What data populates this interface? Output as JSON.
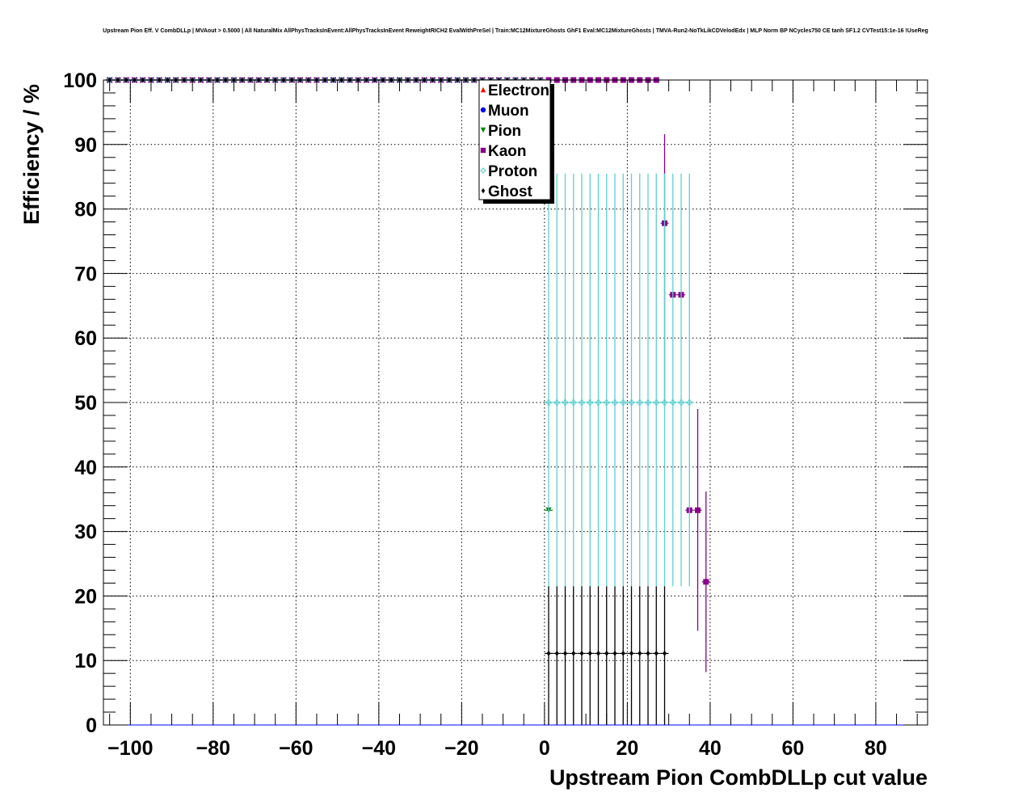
{
  "chart_data": {
    "type": "scatter",
    "title": "Upstream Pion Eff. V CombDLLp | MVAout > 0.5000 | All NaturalMix AllPhysTracksInEvent:AllPhysTracksInEvent ReweightRICH2 EvalWithPreSel | Train:MC12MixtureGhosts GhF1 Eval:MC12MixtureGhosts | TMVA-Run2-NoTkLikCDVelodEdx | MLP Norm BP NCycles750 CE tanh SF1.2 CVTest15:1e-16 !UseReg",
    "xlabel": "Upstream Pion CombDLLp cut value",
    "ylabel": "Efficiency / %",
    "xlim": [
      -106.5,
      92.5
    ],
    "ylim": [
      0,
      100
    ],
    "xticks": [
      -100,
      -80,
      -60,
      -40,
      -20,
      0,
      20,
      40,
      60,
      80
    ],
    "xtick_labels": [
      "−100",
      "−80",
      "−60",
      "−40",
      "−20",
      "0",
      "20",
      "40",
      "60",
      "80"
    ],
    "yticks": [
      0,
      10,
      20,
      30,
      40,
      50,
      60,
      70,
      80,
      90,
      100
    ],
    "ytick_labels": [
      "0",
      "10",
      "20",
      "30",
      "40",
      "50",
      "60",
      "70",
      "80",
      "90",
      "100"
    ],
    "grid": true,
    "legend_position": "top-center",
    "series": [
      {
        "name": "Electron",
        "color": "#ff0000",
        "marker": "triangle-up",
        "points": {
          "x_from": -105,
          "x_to": -1,
          "step": 2,
          "y": 100
        }
      },
      {
        "name": "Muon",
        "color": "#0000ff",
        "marker": "circle",
        "points": {
          "x_from": -105,
          "x_to": -1,
          "step": 2,
          "y": 100
        }
      },
      {
        "name": "Pion",
        "color": "#008800",
        "marker": "triangle-down",
        "points": {
          "x_from": -105,
          "x_to": -1,
          "step": 2,
          "y": 100
        },
        "extra": [
          {
            "x": 1,
            "y": 33.3,
            "lo": 33.3,
            "hi": 33.3
          }
        ]
      },
      {
        "name": "Kaon",
        "color": "#880088",
        "marker": "square",
        "points": {
          "x_from": -105,
          "x_to": 27,
          "step": 2,
          "y": 100
        },
        "extra": [
          {
            "x": 29,
            "y": 77.8,
            "lo": 50,
            "hi": 91.6
          },
          {
            "x": 31,
            "y": 66.7,
            "lo": 66.7,
            "hi": 66.7
          },
          {
            "x": 33,
            "y": 66.7,
            "lo": 66.7,
            "hi": 66.7
          },
          {
            "x": 35,
            "y": 33.3,
            "lo": 33.3,
            "hi": 33.3
          },
          {
            "x": 37,
            "y": 33.3,
            "lo": 14.6,
            "hi": 49
          },
          {
            "x": 39,
            "y": 22.2,
            "lo": 8.2,
            "hi": 36.2
          }
        ]
      },
      {
        "name": "Proton",
        "color": "#5fcfcf",
        "marker": "cross",
        "points": {
          "x_from": -105,
          "x_to": -1,
          "step": 2,
          "y": 100
        },
        "extra_range": {
          "x_from": 1,
          "x_to": 35,
          "step": 2,
          "y": 50,
          "lo": 21.5,
          "hi": 85.5
        }
      },
      {
        "name": "Ghost",
        "color": "#000000",
        "marker": "diamond",
        "points": {
          "x_from": -105,
          "x_to": -1,
          "step": 2,
          "y": 100
        },
        "extra_range": {
          "x_from": 1,
          "x_to": 29,
          "step": 2,
          "y": 11.1,
          "lo": 0,
          "hi": 21.5
        }
      }
    ]
  }
}
